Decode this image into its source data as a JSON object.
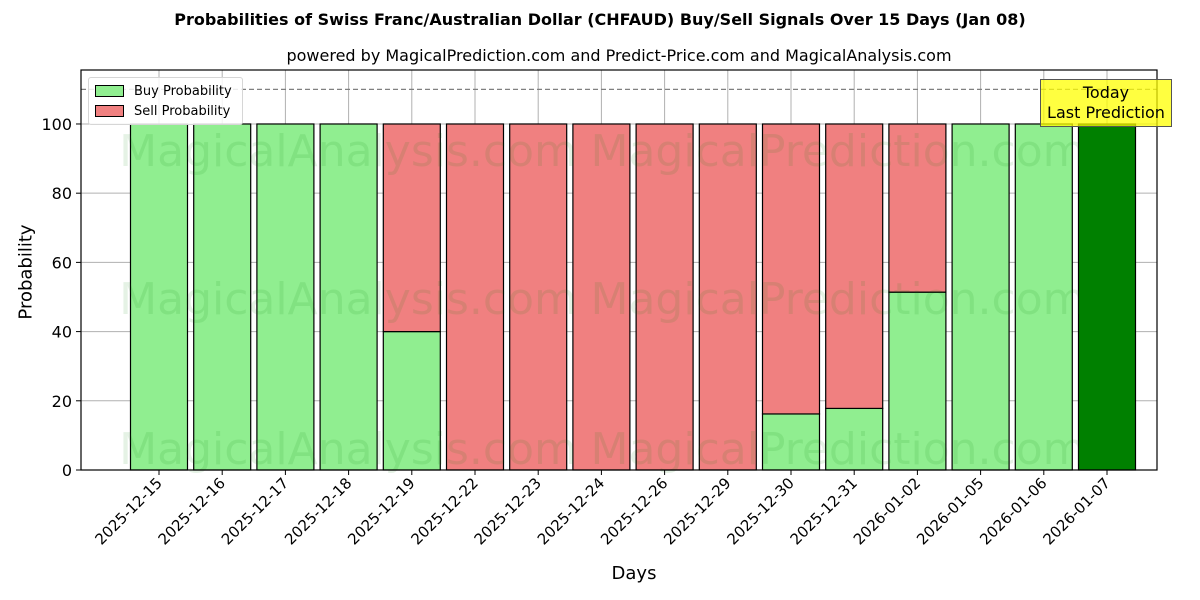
{
  "header": {
    "title": "Probabilities of Swiss Franc/Australian Dollar (CHFAUD) Buy/Sell Signals Over 15 Days (Jan 08)",
    "subtitle": "powered by MagicalPrediction.com and Predict-Price.com and MagicalAnalysis.com"
  },
  "legend": {
    "buy_label": "Buy Probability",
    "sell_label": "Sell Probability"
  },
  "annotation": {
    "line1": "Today",
    "line2": "Last Prediction"
  },
  "watermarks": [
    "MagicalAnalysis.com",
    "MagicalPrediction.com"
  ],
  "colors": {
    "buy": "#90ee90",
    "sell": "#f08080",
    "today": "#008000",
    "annotation_bg": "#ffff00"
  },
  "chart_data": {
    "type": "bar",
    "stacked": true,
    "title": "Probabilities of Swiss Franc/Australian Dollar (CHFAUD) Buy/Sell Signals Over 15 Days (Jan 08)",
    "subtitle": "powered by MagicalPrediction.com and Predict-Price.com and MagicalAnalysis.com",
    "xlabel": "Days",
    "ylabel": "Probability",
    "ylim": [
      0,
      115.6
    ],
    "yticks": [
      0,
      20,
      40,
      60,
      80,
      100
    ],
    "grid": true,
    "legend_position": "upper left",
    "reference_line": {
      "y": 110,
      "style": "dashed",
      "color": "#808080"
    },
    "categories": [
      "2025-12-15",
      "2025-12-16",
      "2025-12-17",
      "2025-12-18",
      "2025-12-19",
      "2025-12-22",
      "2025-12-23",
      "2025-12-24",
      "2025-12-26",
      "2025-12-29",
      "2025-12-30",
      "2025-12-31",
      "2026-01-02",
      "2026-01-05",
      "2026-01-06",
      "2026-01-07"
    ],
    "series": [
      {
        "name": "Buy Probability",
        "values": [
          100,
          100,
          100,
          100,
          40,
          0,
          0,
          0,
          0,
          0,
          16.2,
          17.8,
          51.4,
          100,
          100,
          100
        ]
      },
      {
        "name": "Sell Probability",
        "values": [
          0,
          0,
          0,
          0,
          60,
          100,
          100,
          100,
          100,
          100,
          83.8,
          82.2,
          48.6,
          0,
          0,
          0
        ]
      }
    ],
    "highlight": {
      "category": "2026-01-07",
      "label": "Today\nLast Prediction",
      "color": "#008000"
    }
  }
}
